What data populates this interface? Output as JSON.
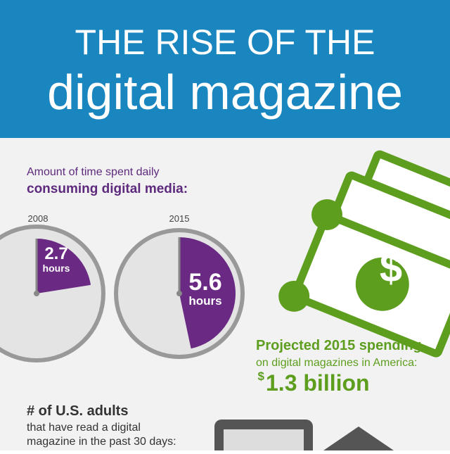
{
  "header": {
    "title_line1": "THE RISE OF THE",
    "title_line2": "digital magazine"
  },
  "time_spent": {
    "label_line1": "Amount of time spent daily",
    "label_line2": "consuming digital media:",
    "clocks": [
      {
        "year": "2008",
        "value": 2.7,
        "unit": "hours"
      },
      {
        "year": "2015",
        "value": 5.6,
        "unit": "hours"
      }
    ]
  },
  "spending": {
    "line1": "Projected 2015 spending",
    "line2": "on digital magazines in America:",
    "currency": "$",
    "amount": "1.3 billion"
  },
  "adults": {
    "line1": "# of U.S. adults",
    "line2": "that have read a digital",
    "line3": "magazine in the past 30 days:"
  }
}
